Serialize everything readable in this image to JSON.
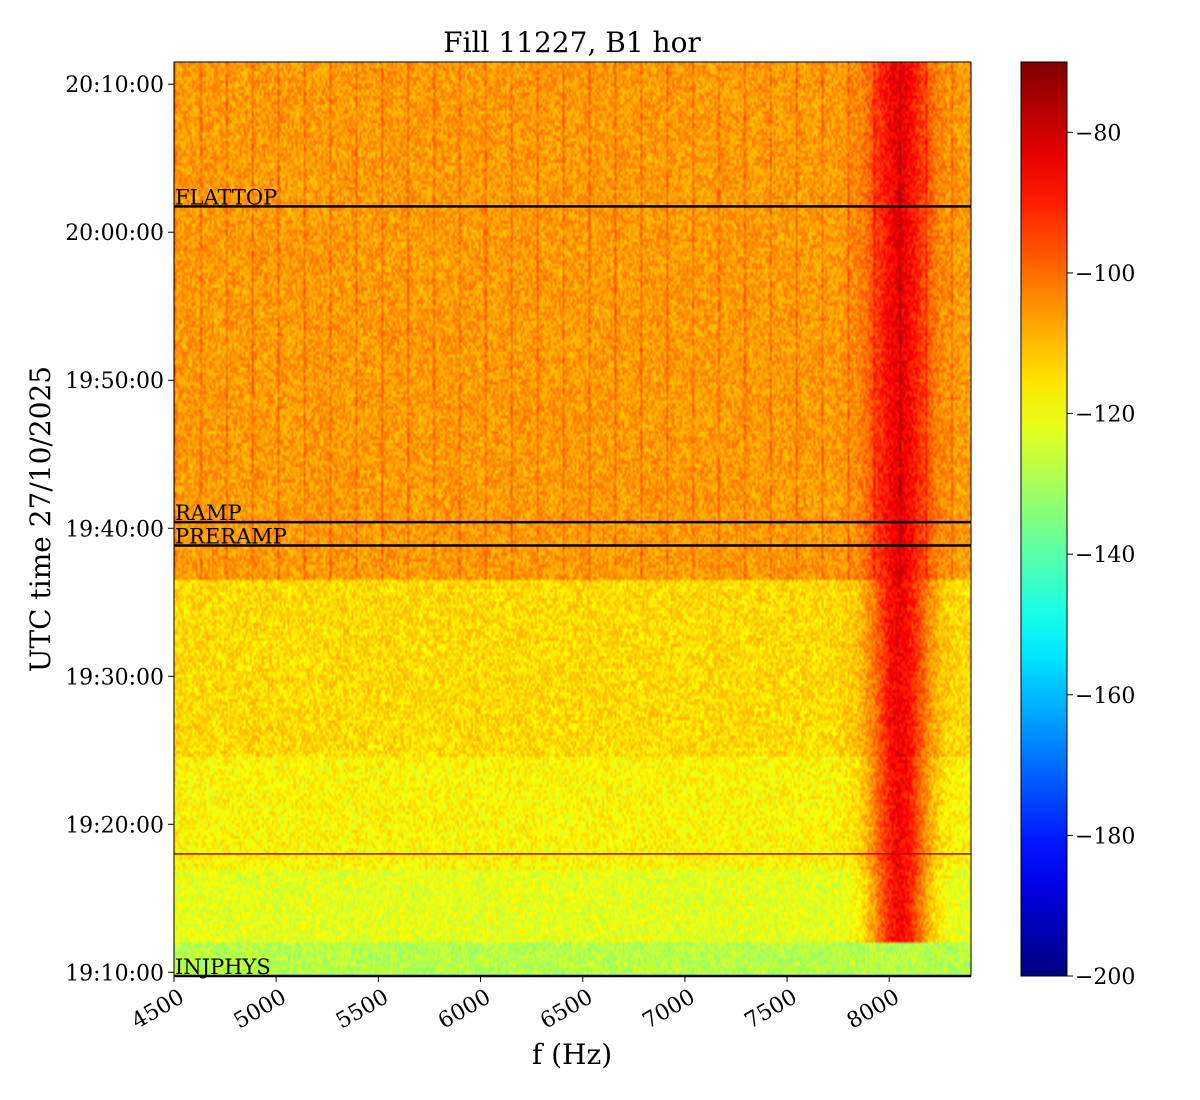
{
  "chart_data": {
    "type": "heatmap",
    "title": "Fill 11227, B1 hor",
    "xlabel": "f (Hz)",
    "ylabel": "UTC time 27/10/2025",
    "x_range": [
      4500,
      8400
    ],
    "x_ticks": [
      4500,
      5000,
      5500,
      6000,
      6500,
      7000,
      7500,
      8000
    ],
    "x_tick_labels": [
      "4500",
      "5000",
      "5500",
      "6000",
      "6500",
      "7000",
      "7500",
      "8000"
    ],
    "y_range": [
      "19:09:45",
      "20:11:30"
    ],
    "y_ticks": [
      "19:10:00",
      "19:20:00",
      "19:30:00",
      "19:40:00",
      "19:50:00",
      "20:00:00",
      "20:10:00"
    ],
    "colorscale": "jet",
    "colorbar": {
      "range": [
        -200,
        -70
      ],
      "ticks": [
        -80,
        -100,
        -120,
        -140,
        -160,
        -180,
        -200
      ],
      "tick_labels": [
        "−80",
        "−100",
        "−120",
        "−140",
        "−160",
        "−180",
        "−200"
      ]
    },
    "level_bands": [
      {
        "from": "19:09:45",
        "to": "19:12:00",
        "value": -128
      },
      {
        "from": "19:12:00",
        "to": "19:17:00",
        "value": -122
      },
      {
        "from": "19:17:00",
        "to": "19:24:30",
        "value": -118
      },
      {
        "from": "19:24:30",
        "to": "19:36:30",
        "value": -114
      },
      {
        "from": "19:36:30",
        "to": "20:11:30",
        "value": -106
      }
    ],
    "hot_region": {
      "center_freq": 8050,
      "peak": -80,
      "from": "19:12:00",
      "to": "20:11:30"
    },
    "phase_markers": [
      {
        "label": "INJPHYS",
        "time": "19:09:45",
        "color": "#000000"
      },
      {
        "label": "",
        "time": "19:18:00",
        "color": "#cc0000"
      },
      {
        "label": "PRERAMP",
        "time": "19:38:50",
        "color": "#000000"
      },
      {
        "label": "RAMP",
        "time": "19:40:25",
        "color": "#000000"
      },
      {
        "label": "FLATTOP",
        "time": "20:01:45",
        "color": "#000000"
      }
    ]
  }
}
